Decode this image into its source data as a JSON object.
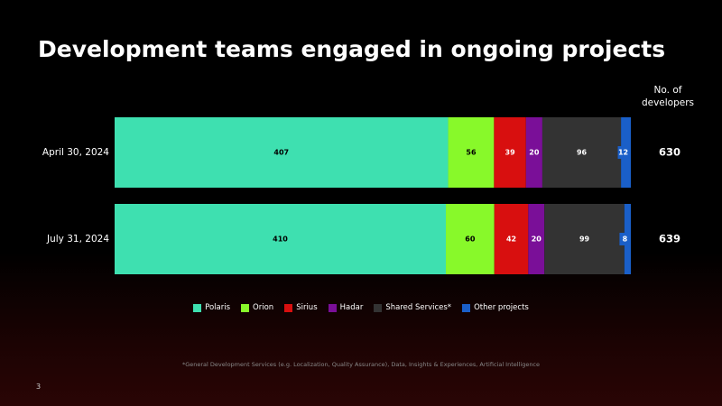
{
  "chart_data": {
    "type": "bar",
    "orientation": "horizontal",
    "stacked": true,
    "title": "Development teams engaged in ongoing projects",
    "categories": [
      "April 30, 2024",
      "July 31, 2024"
    ],
    "series": [
      {
        "name": "Polaris",
        "color": "#3ee0b0",
        "values": [
          407,
          410
        ]
      },
      {
        "name": "Orion",
        "color": "#88f92a",
        "values": [
          56,
          60
        ]
      },
      {
        "name": "Sirius",
        "color": "#d80f0f",
        "values": [
          39,
          42
        ]
      },
      {
        "name": "Hadar",
        "color": "#7a0f98",
        "values": [
          20,
          20
        ]
      },
      {
        "name": "Shared Services*",
        "color": "#333333",
        "values": [
          96,
          99
        ]
      },
      {
        "name": "Other projects",
        "color": "#1a5fc8",
        "values": [
          12,
          8
        ]
      }
    ],
    "totals_label": "No. of developers",
    "totals": [
      630,
      639
    ],
    "legend": "bottom",
    "footnote": "*General Development Services (e.g. Localization, Quality Assurance), Data, Insights & Experiences, Artificial Intelligence",
    "page_number": "3"
  }
}
